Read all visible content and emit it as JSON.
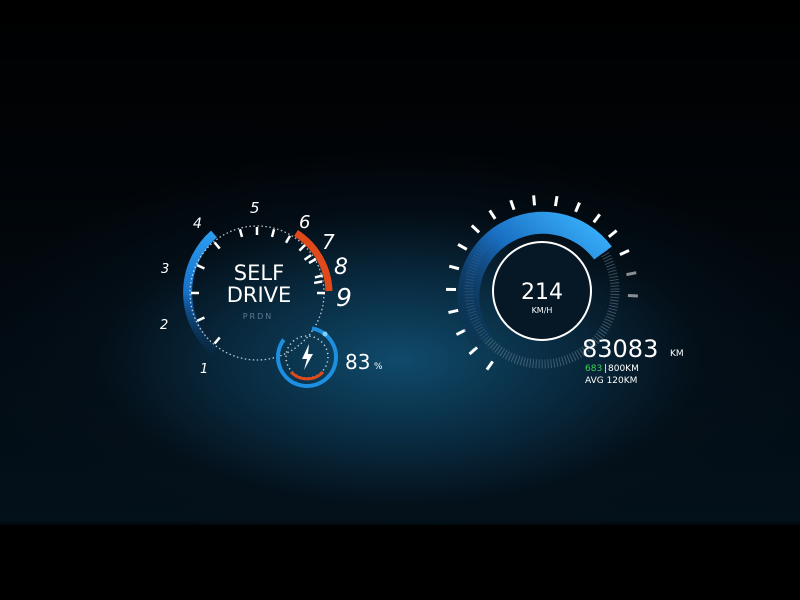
{
  "tachometer": {
    "numbers": [
      "1",
      "2",
      "3",
      "4",
      "5",
      "6",
      "7",
      "8",
      "9"
    ],
    "mode_line1": "SELF",
    "mode_line2": "DRIVE",
    "gear_selector": "PRDN"
  },
  "battery": {
    "icon": "lightning-bolt-icon",
    "value": "83",
    "unit": "%",
    "level": 0.83
  },
  "speedometer": {
    "speed": "214",
    "unit": "KM/H"
  },
  "odometer": {
    "total": "83083",
    "total_unit": "KM",
    "range_current": "683",
    "range_separator": "|",
    "range_total": "800KM",
    "average": "AVG 120KM"
  },
  "colors": {
    "accent_blue": "#1e8fe0",
    "redline": "#e04a1a",
    "range_green": "#39d353",
    "background": "#000000"
  }
}
